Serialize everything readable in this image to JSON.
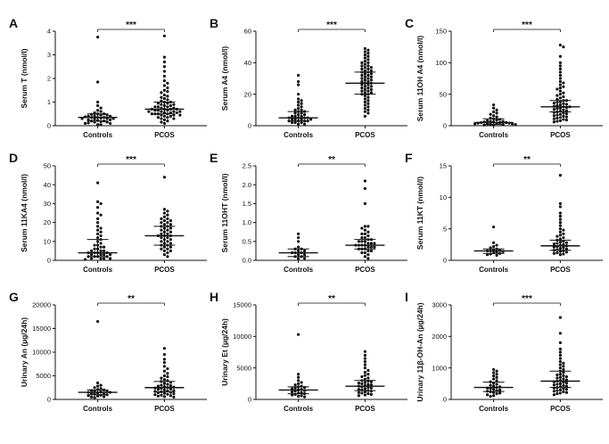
{
  "chart_data": [
    {
      "id": "A",
      "type": "scatter",
      "ylabel": "Serum T (nmol/l)",
      "categories": [
        "Controls",
        "PCOS"
      ],
      "ylim": [
        0,
        4
      ],
      "yticks": [
        0,
        1,
        2,
        3,
        4
      ],
      "significance": "***",
      "groups": [
        {
          "name": "Controls",
          "median": 0.35,
          "iqr": [
            0.2,
            0.5
          ],
          "values": [
            3.75,
            1.85,
            1.0,
            0.85,
            0.75,
            0.65,
            0.6,
            0.55,
            0.5,
            0.5,
            0.48,
            0.45,
            0.45,
            0.42,
            0.4,
            0.4,
            0.38,
            0.35,
            0.35,
            0.35,
            0.32,
            0.3,
            0.3,
            0.3,
            0.28,
            0.25,
            0.25,
            0.22,
            0.2,
            0.2,
            0.18,
            0.15,
            0.15,
            0.12,
            0.1,
            0.1,
            0.05,
            0.05
          ]
        },
        {
          "name": "PCOS",
          "median": 0.7,
          "iqr": [
            0.5,
            1.0
          ],
          "values": [
            3.8,
            2.9,
            2.7,
            2.5,
            2.3,
            2.1,
            1.9,
            1.8,
            1.7,
            1.6,
            1.5,
            1.45,
            1.4,
            1.3,
            1.25,
            1.2,
            1.15,
            1.1,
            1.05,
            1.0,
            1.0,
            0.95,
            0.95,
            0.9,
            0.9,
            0.85,
            0.85,
            0.8,
            0.8,
            0.8,
            0.75,
            0.75,
            0.7,
            0.7,
            0.7,
            0.7,
            0.65,
            0.65,
            0.65,
            0.6,
            0.6,
            0.6,
            0.6,
            0.55,
            0.55,
            0.55,
            0.5,
            0.5,
            0.5,
            0.5,
            0.45,
            0.45,
            0.45,
            0.4,
            0.4,
            0.35,
            0.35,
            0.3,
            0.3,
            0.25,
            0.2,
            0.15,
            0.1
          ]
        }
      ]
    },
    {
      "id": "B",
      "type": "scatter",
      "ylabel": "Serum A4 (nmol/l)",
      "categories": [
        "Controls",
        "PCOS"
      ],
      "ylim": [
        0,
        60
      ],
      "yticks": [
        0,
        20,
        40,
        60
      ],
      "significance": "***",
      "groups": [
        {
          "name": "Controls",
          "median": 5,
          "iqr": [
            3,
            9
          ],
          "values": [
            32,
            28,
            26,
            20,
            17,
            16,
            15,
            14,
            13,
            12,
            11,
            10,
            10,
            9,
            9,
            8,
            8,
            7,
            7,
            6,
            6,
            6,
            5,
            5,
            5,
            5,
            4,
            4,
            4,
            4,
            3,
            3,
            3,
            3,
            2,
            2,
            2,
            1,
            1
          ]
        },
        {
          "name": "PCOS",
          "median": 27,
          "iqr": [
            20,
            34
          ],
          "values": [
            49,
            48,
            47,
            46,
            45,
            44,
            43,
            42,
            41,
            40,
            40,
            39,
            38,
            38,
            37,
            37,
            36,
            36,
            35,
            35,
            34,
            34,
            33,
            33,
            32,
            32,
            31,
            31,
            30,
            30,
            29,
            29,
            28,
            28,
            27,
            27,
            26,
            26,
            25,
            25,
            24,
            24,
            23,
            23,
            22,
            22,
            21,
            21,
            20,
            20,
            19,
            18,
            17,
            16,
            15,
            14,
            13,
            12,
            11,
            10,
            9,
            8,
            6
          ]
        }
      ]
    },
    {
      "id": "C",
      "type": "scatter",
      "ylabel": "Serum 11OH A4 (nmol/l)",
      "categories": [
        "Controls",
        "PCOS"
      ],
      "ylim": [
        0,
        150
      ],
      "yticks": [
        0,
        50,
        100,
        150
      ],
      "significance": "***",
      "groups": [
        {
          "name": "Controls",
          "median": 5,
          "iqr": [
            2,
            11
          ],
          "values": [
            33,
            28,
            25,
            22,
            20,
            18,
            16,
            14,
            12,
            11,
            10,
            9,
            8,
            7,
            7,
            6,
            6,
            5,
            5,
            5,
            4,
            4,
            4,
            3,
            3,
            3,
            2,
            2,
            2,
            1,
            1
          ]
        },
        {
          "name": "PCOS",
          "median": 30,
          "iqr": [
            22,
            40
          ],
          "values": [
            128,
            125,
            110,
            100,
            95,
            90,
            85,
            80,
            75,
            70,
            68,
            65,
            62,
            60,
            58,
            55,
            52,
            50,
            48,
            46,
            44,
            42,
            40,
            40,
            38,
            37,
            36,
            35,
            34,
            33,
            32,
            31,
            30,
            30,
            29,
            28,
            27,
            26,
            25,
            24,
            23,
            22,
            21,
            20,
            19,
            18,
            17,
            16,
            15,
            14,
            13,
            12,
            11,
            10,
            9,
            8,
            7,
            6
          ]
        }
      ]
    },
    {
      "id": "D",
      "type": "scatter",
      "ylabel": "Serum 11KA4 (nmol/l)",
      "categories": [
        "Controls",
        "PCOS"
      ],
      "ylim": [
        0,
        50
      ],
      "yticks": [
        0,
        10,
        20,
        30,
        40,
        50
      ],
      "significance": "***",
      "groups": [
        {
          "name": "Controls",
          "median": 4,
          "iqr": [
            2,
            11
          ],
          "values": [
            41,
            31,
            30,
            28,
            25,
            24,
            22,
            20,
            18,
            17,
            16,
            15,
            14,
            13,
            12,
            11,
            10,
            9,
            8,
            8,
            7,
            7,
            6,
            6,
            5,
            5,
            5,
            4,
            4,
            4,
            4,
            3,
            3,
            3,
            3,
            2,
            2,
            2,
            2,
            1,
            1,
            1,
            1,
            0.5
          ]
        },
        {
          "name": "PCOS",
          "median": 13,
          "iqr": [
            8,
            18
          ],
          "values": [
            44,
            27,
            26,
            25,
            24,
            23,
            22,
            22,
            21,
            21,
            20,
            20,
            19,
            19,
            18,
            18,
            17,
            17,
            16,
            16,
            15,
            15,
            14,
            14,
            13,
            13,
            13,
            12,
            12,
            11,
            11,
            10,
            10,
            9,
            9,
            8,
            8,
            7,
            7,
            6,
            6,
            5,
            5,
            4,
            3,
            2
          ]
        }
      ]
    },
    {
      "id": "E",
      "type": "scatter",
      "ylabel": "Serum 11OHT (nmol/l)",
      "categories": [
        "Controls",
        "PCOS"
      ],
      "ylim": [
        0,
        2.5
      ],
      "yticks": [
        0,
        0.5,
        1.0,
        1.5,
        2.0,
        2.5
      ],
      "significance": "**",
      "groups": [
        {
          "name": "Controls",
          "median": 0.2,
          "iqr": [
            0.1,
            0.3
          ],
          "values": [
            0.7,
            0.6,
            0.5,
            0.35,
            0.3,
            0.3,
            0.25,
            0.25,
            0.2,
            0.2,
            0.2,
            0.15,
            0.15,
            0.1,
            0.1,
            0.05,
            0.05
          ]
        },
        {
          "name": "PCOS",
          "median": 0.4,
          "iqr": [
            0.3,
            0.55
          ],
          "values": [
            2.1,
            1.9,
            1.5,
            0.9,
            0.9,
            0.85,
            0.8,
            0.75,
            0.7,
            0.7,
            0.65,
            0.6,
            0.6,
            0.55,
            0.55,
            0.5,
            0.5,
            0.5,
            0.45,
            0.45,
            0.45,
            0.4,
            0.4,
            0.4,
            0.4,
            0.35,
            0.35,
            0.35,
            0.3,
            0.3,
            0.3,
            0.25,
            0.25,
            0.2,
            0.2,
            0.15,
            0.1,
            0.05
          ]
        }
      ]
    },
    {
      "id": "F",
      "type": "scatter",
      "ylabel": "Serum 11KT (nmol/l)",
      "categories": [
        "Controls",
        "PCOS"
      ],
      "ylim": [
        0,
        15
      ],
      "yticks": [
        0,
        5,
        10,
        15
      ],
      "significance": "**",
      "groups": [
        {
          "name": "Controls",
          "median": 1.5,
          "iqr": [
            1.1,
            1.8
          ],
          "values": [
            5.3,
            2.8,
            2.4,
            2.2,
            2.0,
            1.8,
            1.7,
            1.6,
            1.5,
            1.5,
            1.4,
            1.3,
            1.2,
            1.1,
            1.0,
            0.9,
            0.8
          ]
        },
        {
          "name": "PCOS",
          "median": 2.3,
          "iqr": [
            1.6,
            3.2
          ],
          "values": [
            13.5,
            9.0,
            8.5,
            7.5,
            7.0,
            6.5,
            6.0,
            5.5,
            5.0,
            4.8,
            4.5,
            4.2,
            4.0,
            3.8,
            3.6,
            3.4,
            3.2,
            3.0,
            2.9,
            2.8,
            2.7,
            2.6,
            2.5,
            2.4,
            2.3,
            2.2,
            2.1,
            2.0,
            1.9,
            1.8,
            1.7,
            1.6,
            1.5,
            1.4,
            1.3,
            1.2,
            1.1,
            1.0,
            0.9
          ]
        }
      ]
    },
    {
      "id": "G",
      "type": "scatter",
      "ylabel": "Urinary An (µg/24h)",
      "categories": [
        "Controls",
        "PCOS"
      ],
      "ylim": [
        0,
        20000
      ],
      "yticks": [
        0,
        5000,
        10000,
        15000,
        20000
      ],
      "significance": "**",
      "groups": [
        {
          "name": "Controls",
          "median": 1500,
          "iqr": [
            1000,
            2000
          ],
          "values": [
            16500,
            3500,
            3000,
            2800,
            2500,
            2300,
            2100,
            2000,
            1900,
            1800,
            1700,
            1600,
            1500,
            1500,
            1400,
            1300,
            1200,
            1100,
            1000,
            900,
            800,
            700,
            600,
            500,
            400
          ]
        },
        {
          "name": "PCOS",
          "median": 2500,
          "iqr": [
            1600,
            3800
          ],
          "values": [
            10800,
            9500,
            8500,
            7800,
            7000,
            6500,
            6000,
            5500,
            5000,
            4800,
            4500,
            4200,
            4000,
            3800,
            3600,
            3400,
            3200,
            3000,
            2900,
            2800,
            2700,
            2600,
            2500,
            2400,
            2300,
            2200,
            2100,
            2000,
            1900,
            1800,
            1700,
            1600,
            1500,
            1400,
            1300,
            1200,
            1100,
            1000,
            900,
            800,
            700,
            600,
            500
          ]
        }
      ]
    },
    {
      "id": "H",
      "type": "scatter",
      "ylabel": "Urinary Et (µg/24h)",
      "categories": [
        "Controls",
        "PCOS"
      ],
      "ylim": [
        0,
        15000
      ],
      "yticks": [
        0,
        5000,
        10000,
        15000
      ],
      "significance": "**",
      "groups": [
        {
          "name": "Controls",
          "median": 1500,
          "iqr": [
            900,
            2000
          ],
          "values": [
            10300,
            4000,
            3500,
            3000,
            2700,
            2500,
            2300,
            2100,
            2000,
            1900,
            1800,
            1700,
            1600,
            1500,
            1400,
            1300,
            1200,
            1100,
            1000,
            900,
            800,
            700,
            600,
            500,
            400
          ]
        },
        {
          "name": "PCOS",
          "median": 2100,
          "iqr": [
            1400,
            3000
          ],
          "values": [
            7600,
            7000,
            6500,
            6000,
            5500,
            5000,
            4600,
            4300,
            4000,
            3800,
            3600,
            3400,
            3200,
            3000,
            2900,
            2800,
            2700,
            2600,
            2500,
            2400,
            2300,
            2200,
            2100,
            2000,
            1900,
            1800,
            1700,
            1600,
            1500,
            1400,
            1300,
            1200,
            1100,
            1000,
            900,
            800,
            700,
            600
          ]
        }
      ]
    },
    {
      "id": "I",
      "type": "scatter",
      "ylabel": "Urinary 11β-OH-An (µg/24h)",
      "categories": [
        "Controls",
        "PCOS"
      ],
      "ylim": [
        0,
        3000
      ],
      "yticks": [
        0,
        1000,
        2000,
        3000
      ],
      "significance": "***",
      "groups": [
        {
          "name": "Controls",
          "median": 380,
          "iqr": [
            250,
            550
          ],
          "values": [
            950,
            900,
            850,
            800,
            750,
            700,
            650,
            600,
            560,
            520,
            480,
            450,
            420,
            400,
            380,
            360,
            340,
            320,
            300,
            280,
            260,
            240,
            220,
            200,
            180,
            150,
            120,
            100
          ]
        },
        {
          "name": "PCOS",
          "median": 580,
          "iqr": [
            380,
            900
          ],
          "values": [
            2600,
            2100,
            1800,
            1600,
            1500,
            1400,
            1300,
            1200,
            1150,
            1100,
            1050,
            1000,
            950,
            900,
            850,
            800,
            780,
            750,
            720,
            700,
            680,
            650,
            620,
            600,
            580,
            560,
            540,
            520,
            500,
            480,
            460,
            440,
            420,
            400,
            380,
            360,
            340,
            320,
            300,
            280,
            260,
            240,
            220,
            200,
            180,
            150
          ]
        }
      ]
    }
  ]
}
